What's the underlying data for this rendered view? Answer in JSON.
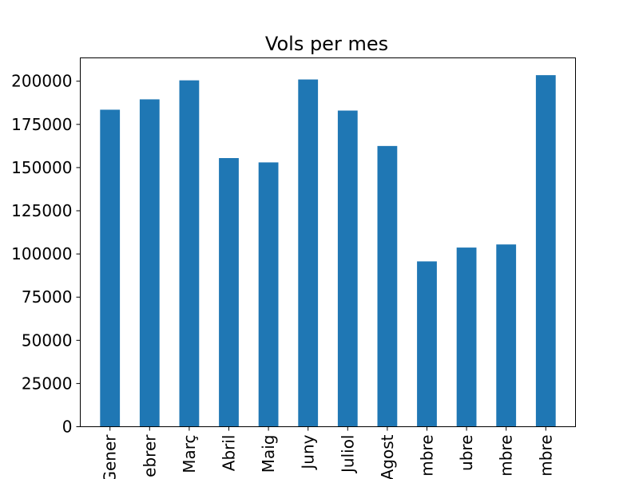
{
  "chart_data": {
    "type": "bar",
    "title": "Vols per mes",
    "xlabel": "",
    "ylabel": "",
    "categories": [
      "Gener",
      "Febrer",
      "Març",
      "Abril",
      "Maig",
      "Juny",
      "Juliol",
      "Agost",
      "Setembre",
      "Octubre",
      "Novembre",
      "Desembre"
    ],
    "category_labels_visible": [
      "Gener",
      "ebrer",
      "Març",
      "Abril",
      "Maig",
      "Juny",
      "Juliol",
      "Agost",
      "mbre",
      "ubre",
      "mbre",
      "mbre"
    ],
    "values": [
      183500,
      189500,
      200500,
      155500,
      153000,
      201000,
      183000,
      162500,
      95700,
      103700,
      105500,
      203500
    ],
    "ylim": [
      0,
      213500
    ],
    "yticks": [
      0,
      25000,
      50000,
      75000,
      100000,
      125000,
      150000,
      175000,
      200000
    ],
    "ytick_labels": [
      "0",
      "25000",
      "50000",
      "75000",
      "100000",
      "125000",
      "150000",
      "175000",
      "200000"
    ],
    "grid": false,
    "bar_color": "#1f77b4"
  }
}
